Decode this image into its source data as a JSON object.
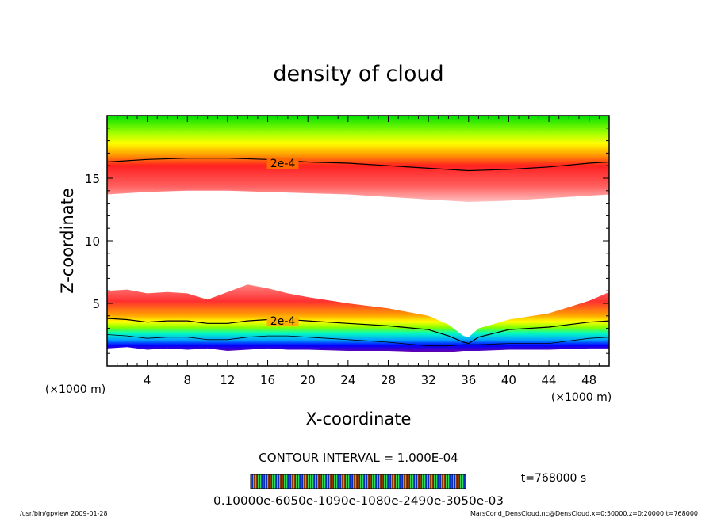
{
  "chart_data": {
    "type": "heatmap",
    "title": "density of cloud",
    "xlabel": "X-coordinate",
    "ylabel": "Z-coordinate",
    "x_unit_left": "(×1000 m)",
    "x_unit_right": "(×1000 m)",
    "xlim": [
      0,
      50
    ],
    "ylim": [
      0,
      20
    ],
    "x_ticks": [
      4,
      8,
      12,
      16,
      20,
      24,
      28,
      32,
      36,
      40,
      44,
      48
    ],
    "y_ticks": [
      5,
      10,
      15
    ],
    "contour_labels": [
      {
        "text": "2e-4",
        "x": 17.5,
        "z": 16.2
      },
      {
        "text": "2e-4",
        "x": 17.5,
        "z": 3.6
      }
    ],
    "upper_layer": {
      "x": [
        0,
        4,
        8,
        12,
        16,
        20,
        24,
        28,
        32,
        36,
        40,
        44,
        48,
        50
      ],
      "top": [
        20,
        20,
        20,
        20,
        20,
        20,
        20,
        20,
        20,
        20,
        20,
        20,
        20,
        20
      ],
      "contour_2e4": [
        16.3,
        16.5,
        16.6,
        16.6,
        16.5,
        16.3,
        16.2,
        16.0,
        15.8,
        15.6,
        15.7,
        15.9,
        16.2,
        16.3
      ],
      "bottom": [
        13.7,
        13.9,
        14.0,
        14.0,
        13.9,
        13.8,
        13.7,
        13.5,
        13.3,
        13.1,
        13.2,
        13.4,
        13.6,
        13.7
      ]
    },
    "lower_layer": {
      "x": [
        0,
        2,
        4,
        6,
        8,
        10,
        12,
        14,
        16,
        18,
        20,
        24,
        28,
        32,
        34,
        35.5,
        36,
        37,
        40,
        44,
        48,
        50
      ],
      "top": [
        6.0,
        6.1,
        5.8,
        5.9,
        5.8,
        5.3,
        5.9,
        6.5,
        6.2,
        5.8,
        5.5,
        5.0,
        4.6,
        4.0,
        3.3,
        2.4,
        2.3,
        3.0,
        3.7,
        4.2,
        5.2,
        5.9
      ],
      "contour_2e4": [
        3.8,
        3.7,
        3.5,
        3.6,
        3.6,
        3.4,
        3.4,
        3.6,
        3.7,
        3.7,
        3.6,
        3.4,
        3.2,
        2.9,
        2.4,
        1.9,
        1.8,
        2.3,
        2.9,
        3.1,
        3.5,
        3.6
      ],
      "bottom": [
        1.4,
        1.5,
        1.3,
        1.4,
        1.3,
        1.4,
        1.2,
        1.3,
        1.4,
        1.3,
        1.3,
        1.2,
        1.2,
        1.1,
        1.1,
        1.2,
        1.2,
        1.2,
        1.3,
        1.3,
        1.4,
        1.4
      ]
    },
    "colormap": [
      "#4b0082",
      "#0000ff",
      "#00a0ff",
      "#00ffc0",
      "#00e000",
      "#a0ff00",
      "#ffff00",
      "#ffa000",
      "#ff2000",
      "#ff9090"
    ],
    "contour_interval_label": "CONTOUR INTERVAL = 1.000E-04",
    "time_label": "t=768000 s",
    "colorbar_tick_text": "0.10000e-6050e-1090e-1080e-2490e-3050e-03",
    "footer_left": "/usr/bin/gpview  2009-01-28",
    "footer_right": "MarsCond_DensCloud.nc@DensCloud,x=0:50000,z=0:20000,t=768000"
  }
}
